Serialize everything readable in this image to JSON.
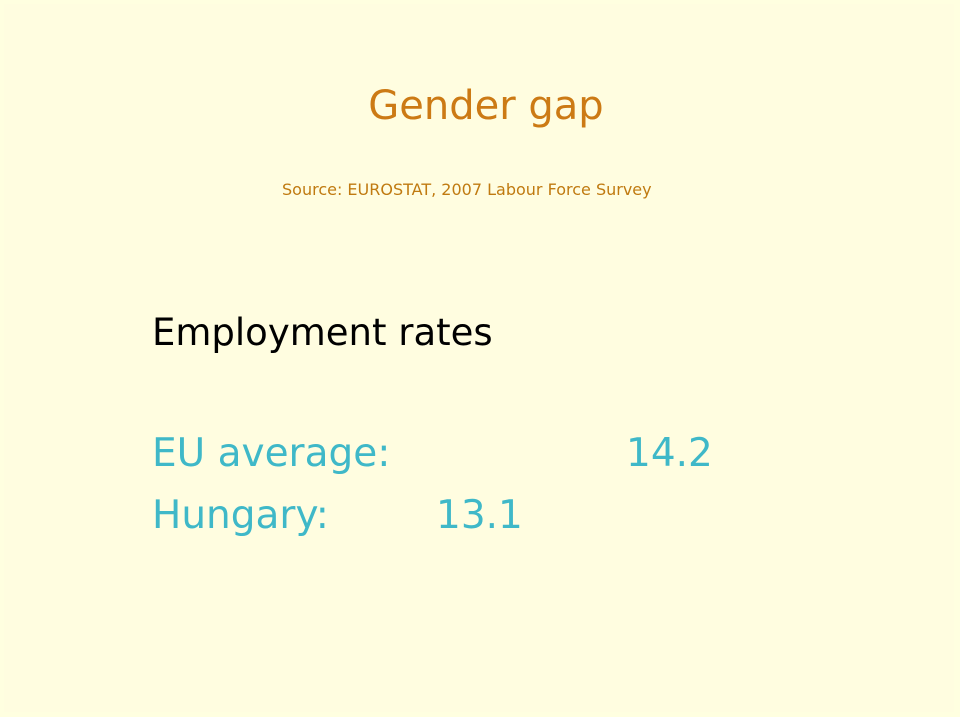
{
  "title": "Gender gap",
  "source": "Source: EUROSTAT, 2007 Labour Force Survey",
  "heading": "Employment rates",
  "rows": [
    {
      "label": "EU average:",
      "value": "14.2"
    },
    {
      "label": "Hungary:",
      "value": "13.1"
    }
  ]
}
